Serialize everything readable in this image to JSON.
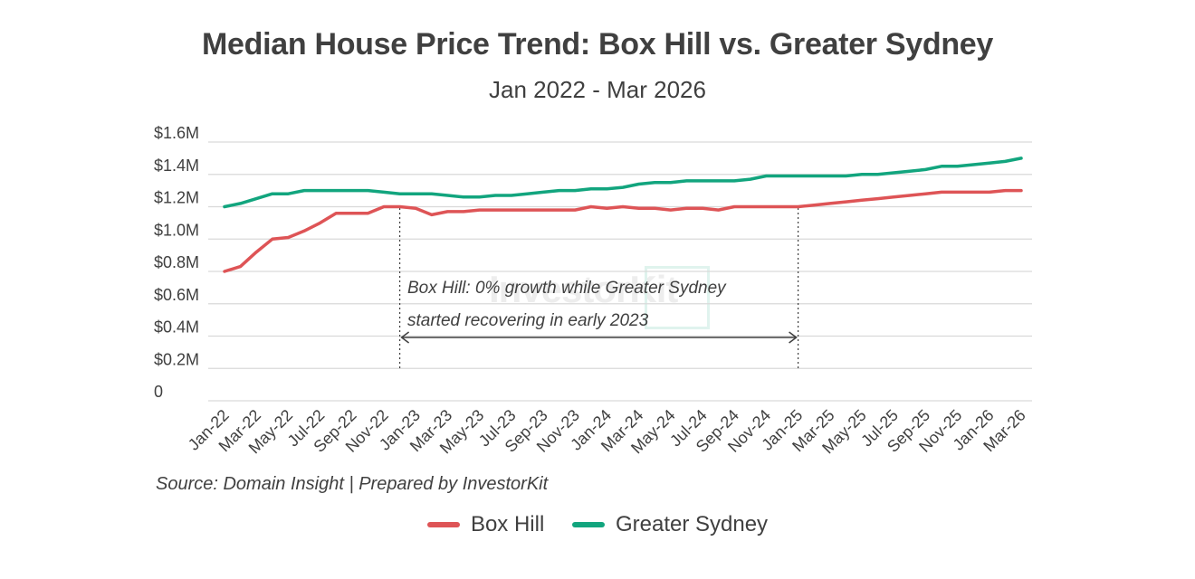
{
  "title": "Median House Price Trend: Box Hill vs. Greater Sydney",
  "subtitle": "Jan 2022 - Mar 2026",
  "source": "Source: Domain Insight | Prepared by InvestorKit",
  "watermark": "InvestorKit",
  "annotation": {
    "line1": "Box Hill: 0% growth while Greater Sydney",
    "line2": "started recovering in early 2023",
    "from_month": "Dec-22",
    "to_month": "Jan-25"
  },
  "colors": {
    "box_hill": "#de5456",
    "greater_sydney": "#12a57e",
    "grid": "#d9d9d9",
    "text": "#404040"
  },
  "legend": [
    {
      "name": "Box Hill",
      "color": "#de5456"
    },
    {
      "name": "Greater Sydney",
      "color": "#12a57e"
    }
  ],
  "chart_data": {
    "type": "line",
    "title": "Median House Price Trend: Box Hill vs. Greater Sydney",
    "subtitle": "Jan 2022 - Mar 2026",
    "xlabel": "",
    "ylabel": "",
    "ylim": [
      0,
      1600000
    ],
    "y_ticks": [
      0,
      200000,
      400000,
      600000,
      800000,
      1000000,
      1200000,
      1400000,
      1600000
    ],
    "y_tick_labels": [
      "0",
      "$0.2M",
      "$0.4M",
      "$0.6M",
      "$0.8M",
      "$1.0M",
      "$1.2M",
      "$1.4M",
      "$1.6M"
    ],
    "x_tick_labels": [
      "Jan-22",
      "Mar-22",
      "May-22",
      "Jul-22",
      "Sep-22",
      "Nov-22",
      "Jan-23",
      "Mar-23",
      "May-23",
      "Jul-23",
      "Sep-23",
      "Nov-23",
      "Jan-24",
      "Mar-24",
      "May-24",
      "Jul-24",
      "Sep-24",
      "Nov-24",
      "Jan-25",
      "Mar-25",
      "May-25",
      "Jul-25",
      "Sep-25",
      "Nov-25",
      "Jan-26",
      "Mar-26"
    ],
    "grid": true,
    "legend_position": "bottom",
    "x": [
      "Jan-22",
      "Feb-22",
      "Mar-22",
      "Apr-22",
      "May-22",
      "Jun-22",
      "Jul-22",
      "Aug-22",
      "Sep-22",
      "Oct-22",
      "Nov-22",
      "Dec-22",
      "Jan-23",
      "Feb-23",
      "Mar-23",
      "Apr-23",
      "May-23",
      "Jun-23",
      "Jul-23",
      "Aug-23",
      "Sep-23",
      "Oct-23",
      "Nov-23",
      "Dec-23",
      "Jan-24",
      "Feb-24",
      "Mar-24",
      "Apr-24",
      "May-24",
      "Jun-24",
      "Jul-24",
      "Aug-24",
      "Sep-24",
      "Oct-24",
      "Nov-24",
      "Dec-24",
      "Jan-25",
      "Feb-25",
      "Mar-25",
      "Apr-25",
      "May-25",
      "Jun-25",
      "Jul-25",
      "Aug-25",
      "Sep-25",
      "Oct-25",
      "Nov-25",
      "Dec-25",
      "Jan-26",
      "Feb-26",
      "Mar-26"
    ],
    "series": [
      {
        "name": "Box Hill",
        "color": "#de5456",
        "values": [
          800000,
          830000,
          920000,
          1000000,
          1010000,
          1050000,
          1100000,
          1160000,
          1160000,
          1160000,
          1200000,
          1200000,
          1190000,
          1150000,
          1170000,
          1170000,
          1180000,
          1180000,
          1180000,
          1180000,
          1180000,
          1180000,
          1180000,
          1200000,
          1190000,
          1200000,
          1190000,
          1190000,
          1180000,
          1190000,
          1190000,
          1180000,
          1200000,
          1200000,
          1200000,
          1200000,
          1200000,
          1210000,
          1220000,
          1230000,
          1240000,
          1250000,
          1260000,
          1270000,
          1280000,
          1290000,
          1290000,
          1290000,
          1290000,
          1300000,
          1300000
        ]
      },
      {
        "name": "Greater Sydney",
        "color": "#12a57e",
        "values": [
          1200000,
          1220000,
          1250000,
          1280000,
          1280000,
          1300000,
          1300000,
          1300000,
          1300000,
          1300000,
          1290000,
          1280000,
          1280000,
          1280000,
          1270000,
          1260000,
          1260000,
          1270000,
          1270000,
          1280000,
          1290000,
          1300000,
          1300000,
          1310000,
          1310000,
          1320000,
          1340000,
          1350000,
          1350000,
          1360000,
          1360000,
          1360000,
          1360000,
          1370000,
          1390000,
          1390000,
          1390000,
          1390000,
          1390000,
          1390000,
          1400000,
          1400000,
          1410000,
          1420000,
          1430000,
          1450000,
          1450000,
          1460000,
          1470000,
          1480000,
          1500000
        ]
      }
    ]
  }
}
